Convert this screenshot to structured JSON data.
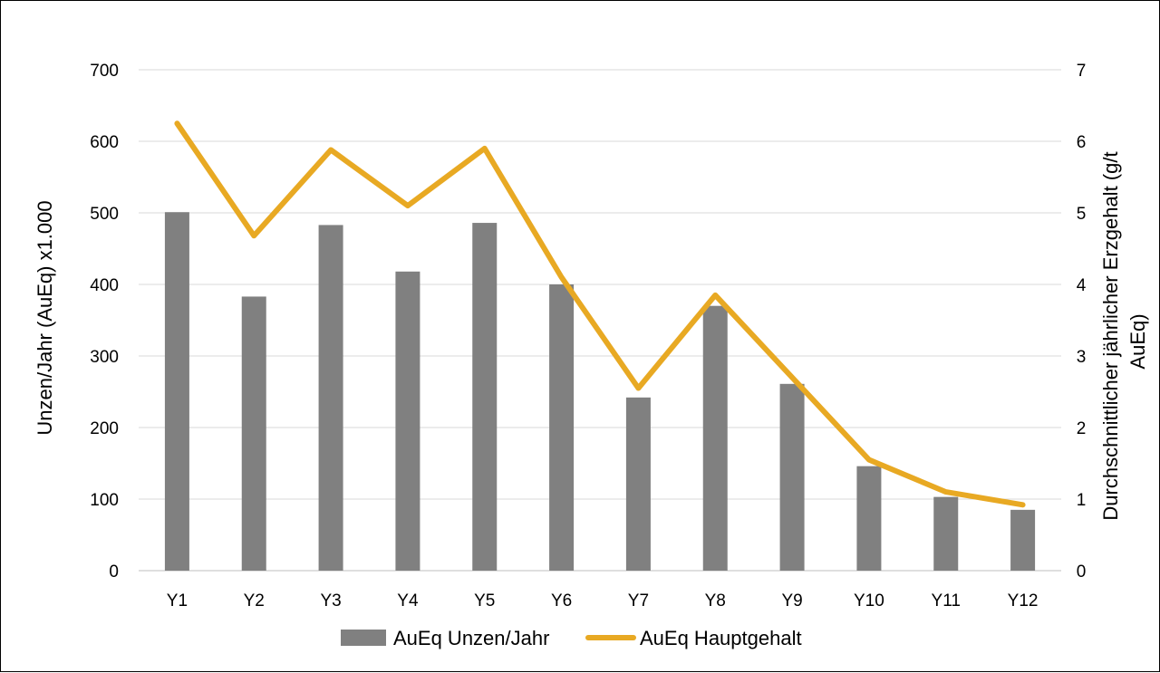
{
  "chart_data": {
    "type": "bar",
    "categories": [
      "Y1",
      "Y2",
      "Y3",
      "Y4",
      "Y5",
      "Y6",
      "Y7",
      "Y8",
      "Y9",
      "Y10",
      "Y11",
      "Y12"
    ],
    "series": [
      {
        "name": "AuEq Unzen/Jahr",
        "type": "bar",
        "axis": "left",
        "values": [
          501,
          383,
          483,
          418,
          486,
          400,
          242,
          370,
          261,
          146,
          103,
          85
        ]
      },
      {
        "name": "AuEq Hauptgehalt",
        "type": "line",
        "axis": "right",
        "values": [
          6.25,
          4.68,
          5.88,
          5.1,
          5.9,
          4.1,
          2.55,
          3.85,
          2.7,
          1.55,
          1.1,
          0.92
        ]
      }
    ],
    "ylabel": "Unzen/Jahr (AuEq) x1.000",
    "y2label": [
      "Durchschnittlicher jährlicher Erzgehalt (g/t",
      "AuEq)"
    ],
    "ylim": [
      0,
      700
    ],
    "y2lim": [
      0,
      7
    ],
    "yticks": [
      "0",
      "100",
      "200",
      "300",
      "400",
      "500",
      "600",
      "700"
    ],
    "y2ticks": [
      "0",
      "1",
      "2",
      "3",
      "4",
      "5",
      "6",
      "7"
    ],
    "grid": true,
    "legend": "bottom",
    "colors": {
      "bar": "#808080",
      "line": "#E8A923",
      "grid": "#d9d9d9"
    }
  }
}
